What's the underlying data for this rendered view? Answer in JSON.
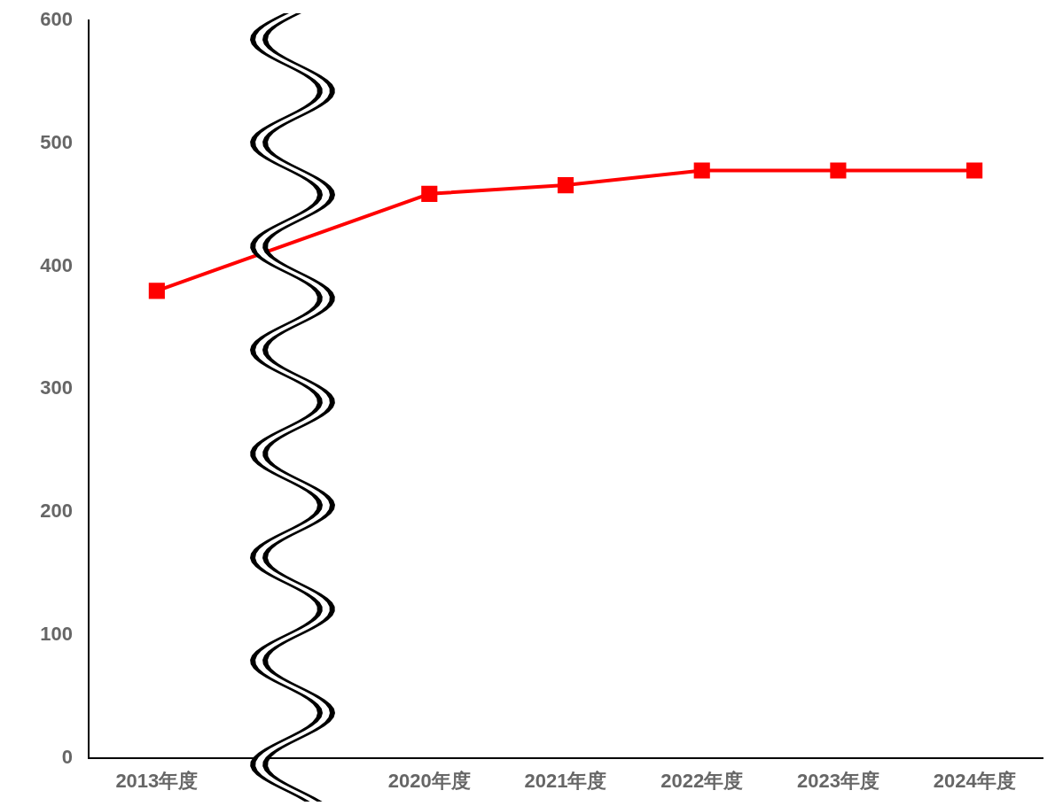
{
  "chart_data": {
    "type": "line",
    "categories": [
      "2013年度",
      null,
      "2020年度",
      "2021年度",
      "2022年度",
      "2023年度",
      "2024年度"
    ],
    "series": [
      {
        "color": "#ff0000",
        "values": [
          380,
          null,
          459,
          466,
          478,
          478,
          478
        ]
      }
    ],
    "ylim": [
      0,
      600
    ],
    "yticks": [
      0,
      100,
      200,
      300,
      400,
      500,
      600
    ],
    "marker": "square",
    "grid": false,
    "legend": false
  }
}
